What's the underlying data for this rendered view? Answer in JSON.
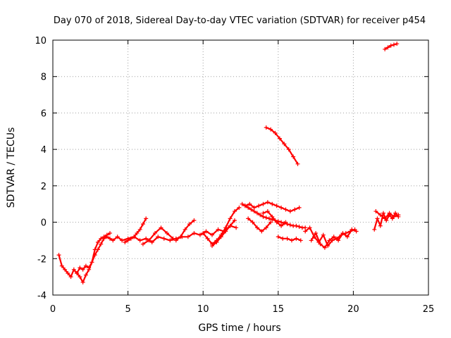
{
  "chart_data": {
    "type": "scatter",
    "title": "Day 070 of 2018, Sidereal Day-to-day VTEC variation (SDTVAR) for receiver p454",
    "xlabel": "GPS time / hours",
    "ylabel": "SDTVAR / TECUs",
    "xlim": [
      0,
      25
    ],
    "ylim": [
      -4,
      10
    ],
    "xticks": [
      "0",
      "5",
      "10",
      "15",
      "20",
      "25"
    ],
    "yticks": [
      "-4",
      "-2",
      "0",
      "2",
      "4",
      "6",
      "8",
      "10"
    ],
    "grid": true,
    "marker": "plus",
    "color": "#ff0000",
    "series": [
      {
        "x": [
          0.4,
          0.6,
          0.8,
          1.0,
          1.2,
          1.4,
          1.6,
          1.8,
          2.0,
          2.2,
          2.4,
          2.6,
          2.8,
          3.0,
          3.2,
          3.4,
          3.6,
          3.8,
          4.0,
          4.3,
          4.6,
          5.0,
          5.4,
          5.8,
          6.2,
          6.6,
          7.0,
          7.4,
          7.8,
          8.2,
          8.6,
          9.0,
          9.4,
          9.8,
          10.2,
          10.6,
          11.0,
          11.4,
          11.8,
          12.2
        ],
        "y": [
          -1.8,
          -2.4,
          -2.6,
          -2.8,
          -3.0,
          -2.6,
          -2.8,
          -3.0,
          -3.3,
          -2.9,
          -2.6,
          -2.2,
          -1.8,
          -1.5,
          -1.2,
          -0.9,
          -0.8,
          -0.9,
          -1.0,
          -0.8,
          -1.0,
          -0.9,
          -0.8,
          -1.0,
          -0.9,
          -1.1,
          -0.8,
          -0.9,
          -1.0,
          -0.9,
          -0.8,
          -0.8,
          -0.6,
          -0.7,
          -0.5,
          -0.7,
          -0.4,
          -0.5,
          -0.2,
          -0.3
        ]
      },
      {
        "x": [
          1.6,
          1.8,
          2.0,
          2.2,
          2.4,
          2.6,
          2.8,
          3.0,
          3.2,
          3.4,
          3.6,
          3.8
        ],
        "y": [
          -2.8,
          -2.5,
          -2.6,
          -2.4,
          -2.5,
          -2.2,
          -1.5,
          -1.1,
          -0.9,
          -0.8,
          -0.7,
          -0.6
        ]
      },
      {
        "x": [
          4.8,
          5.0,
          5.2,
          5.4,
          5.6,
          5.8,
          6.0,
          6.2
        ],
        "y": [
          -1.1,
          -1.0,
          -0.9,
          -0.8,
          -0.6,
          -0.4,
          -0.1,
          0.2
        ]
      },
      {
        "x": [
          6.0,
          6.4,
          6.8,
          7.2,
          7.6,
          8.0
        ],
        "y": [
          -1.2,
          -1.0,
          -0.6,
          -0.3,
          -0.6,
          -0.9
        ]
      },
      {
        "x": [
          8.2,
          8.5,
          8.8,
          9.1,
          9.4
        ],
        "y": [
          -1.0,
          -0.8,
          -0.4,
          -0.1,
          0.1
        ]
      },
      {
        "x": [
          10.0,
          10.3,
          10.6,
          10.9,
          11.2,
          11.5,
          11.8,
          12.1,
          12.4
        ],
        "y": [
          -0.6,
          -0.9,
          -1.2,
          -1.0,
          -0.7,
          -0.3,
          0.2,
          0.6,
          0.8
        ]
      },
      {
        "x": [
          10.6,
          10.9,
          11.2,
          11.5,
          11.8,
          12.1
        ],
        "y": [
          -1.3,
          -1.1,
          -0.8,
          -0.5,
          -0.2,
          0.1
        ]
      },
      {
        "x": [
          12.6,
          12.8,
          13.0,
          13.2,
          13.4,
          13.6,
          13.8,
          14.0,
          14.2,
          14.4,
          14.6,
          14.8,
          15.0,
          15.2,
          15.4,
          15.6,
          15.8,
          16.0,
          16.2,
          16.4,
          16.6,
          16.8
        ],
        "y": [
          1.0,
          0.9,
          0.8,
          0.7,
          0.6,
          0.5,
          0.4,
          0.3,
          0.25,
          0.2,
          0.15,
          0.1,
          0.05,
          0.0,
          -0.05,
          -0.1,
          -0.15,
          -0.2,
          -0.2,
          -0.25,
          -0.3,
          -0.3
        ]
      },
      {
        "x": [
          12.8,
          13.1,
          13.4,
          13.7,
          14.0,
          14.3,
          14.6,
          14.9,
          15.2,
          15.5,
          15.8,
          16.1,
          16.4
        ],
        "y": [
          0.9,
          1.0,
          0.8,
          0.9,
          1.0,
          1.1,
          1.0,
          0.9,
          0.8,
          0.7,
          0.6,
          0.7,
          0.8
        ]
      },
      {
        "x": [
          13.0,
          13.3,
          13.6,
          13.9,
          14.2,
          14.5
        ],
        "y": [
          0.2,
          0.0,
          -0.3,
          -0.5,
          -0.3,
          0.0
        ]
      },
      {
        "x": [
          14.0,
          14.3,
          14.6,
          14.9,
          15.2,
          15.5
        ],
        "y": [
          0.5,
          0.6,
          0.3,
          0.0,
          -0.2,
          0.0
        ]
      },
      {
        "x": [
          14.2,
          14.5,
          14.8,
          15.1,
          15.4,
          15.7,
          16.0,
          16.3
        ],
        "y": [
          5.2,
          5.1,
          4.9,
          4.6,
          4.3,
          4.0,
          3.6,
          3.2
        ]
      },
      {
        "x": [
          15.0,
          15.3,
          15.6,
          15.9,
          16.2,
          16.5
        ],
        "y": [
          -0.8,
          -0.9,
          -0.9,
          -1.0,
          -0.9,
          -1.0
        ]
      },
      {
        "x": [
          16.8,
          17.1,
          17.4,
          17.7,
          18.0,
          18.3,
          18.6,
          18.9,
          19.2,
          19.5,
          19.8,
          20.1
        ],
        "y": [
          -0.5,
          -0.3,
          -0.8,
          -1.1,
          -0.7,
          -1.3,
          -1.0,
          -0.9,
          -0.7,
          -0.6,
          -0.5,
          -0.4
        ]
      },
      {
        "x": [
          17.2,
          17.5,
          17.8,
          18.1,
          18.4,
          18.7,
          19.0,
          19.3,
          19.6,
          19.9,
          20.2
        ],
        "y": [
          -1.0,
          -0.6,
          -1.2,
          -1.4,
          -1.0,
          -0.8,
          -1.0,
          -0.6,
          -0.8,
          -0.4,
          -0.5
        ]
      },
      {
        "x": [
          21.4,
          21.6,
          21.8,
          22.0,
          22.2,
          22.4,
          22.6,
          22.8,
          23.0
        ],
        "y": [
          -0.4,
          0.2,
          -0.2,
          0.5,
          0.1,
          0.4,
          0.2,
          0.5,
          0.3
        ]
      },
      {
        "x": [
          21.5,
          21.8,
          22.1,
          22.4,
          22.7,
          23.0
        ],
        "y": [
          0.6,
          0.4,
          0.2,
          0.5,
          0.3,
          0.4
        ]
      },
      {
        "x": [
          22.1,
          22.3,
          22.5,
          22.7,
          22.9
        ],
        "y": [
          9.5,
          9.6,
          9.7,
          9.75,
          9.8
        ]
      }
    ]
  }
}
